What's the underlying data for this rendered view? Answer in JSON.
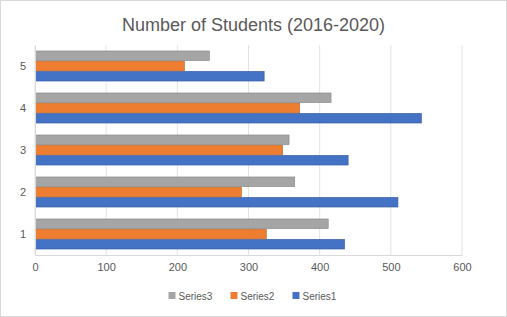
{
  "chart_data": {
    "type": "bar",
    "orientation": "horizontal",
    "title": "Number of Students (2016-2020)",
    "categories": [
      "1",
      "2",
      "3",
      "4",
      "5"
    ],
    "series": [
      {
        "name": "Series1",
        "color": "#4472c4",
        "values": [
          435,
          510,
          440,
          543,
          322
        ]
      },
      {
        "name": "Series2",
        "color": "#ed7d31",
        "values": [
          325,
          290,
          348,
          372,
          210
        ]
      },
      {
        "name": "Series3",
        "color": "#a5a5a5",
        "values": [
          412,
          365,
          357,
          416,
          245
        ]
      }
    ],
    "xlim": [
      0,
      600
    ],
    "xticks": [
      0,
      100,
      200,
      300,
      400,
      500,
      600
    ],
    "grid": true,
    "legend": "bottom"
  }
}
